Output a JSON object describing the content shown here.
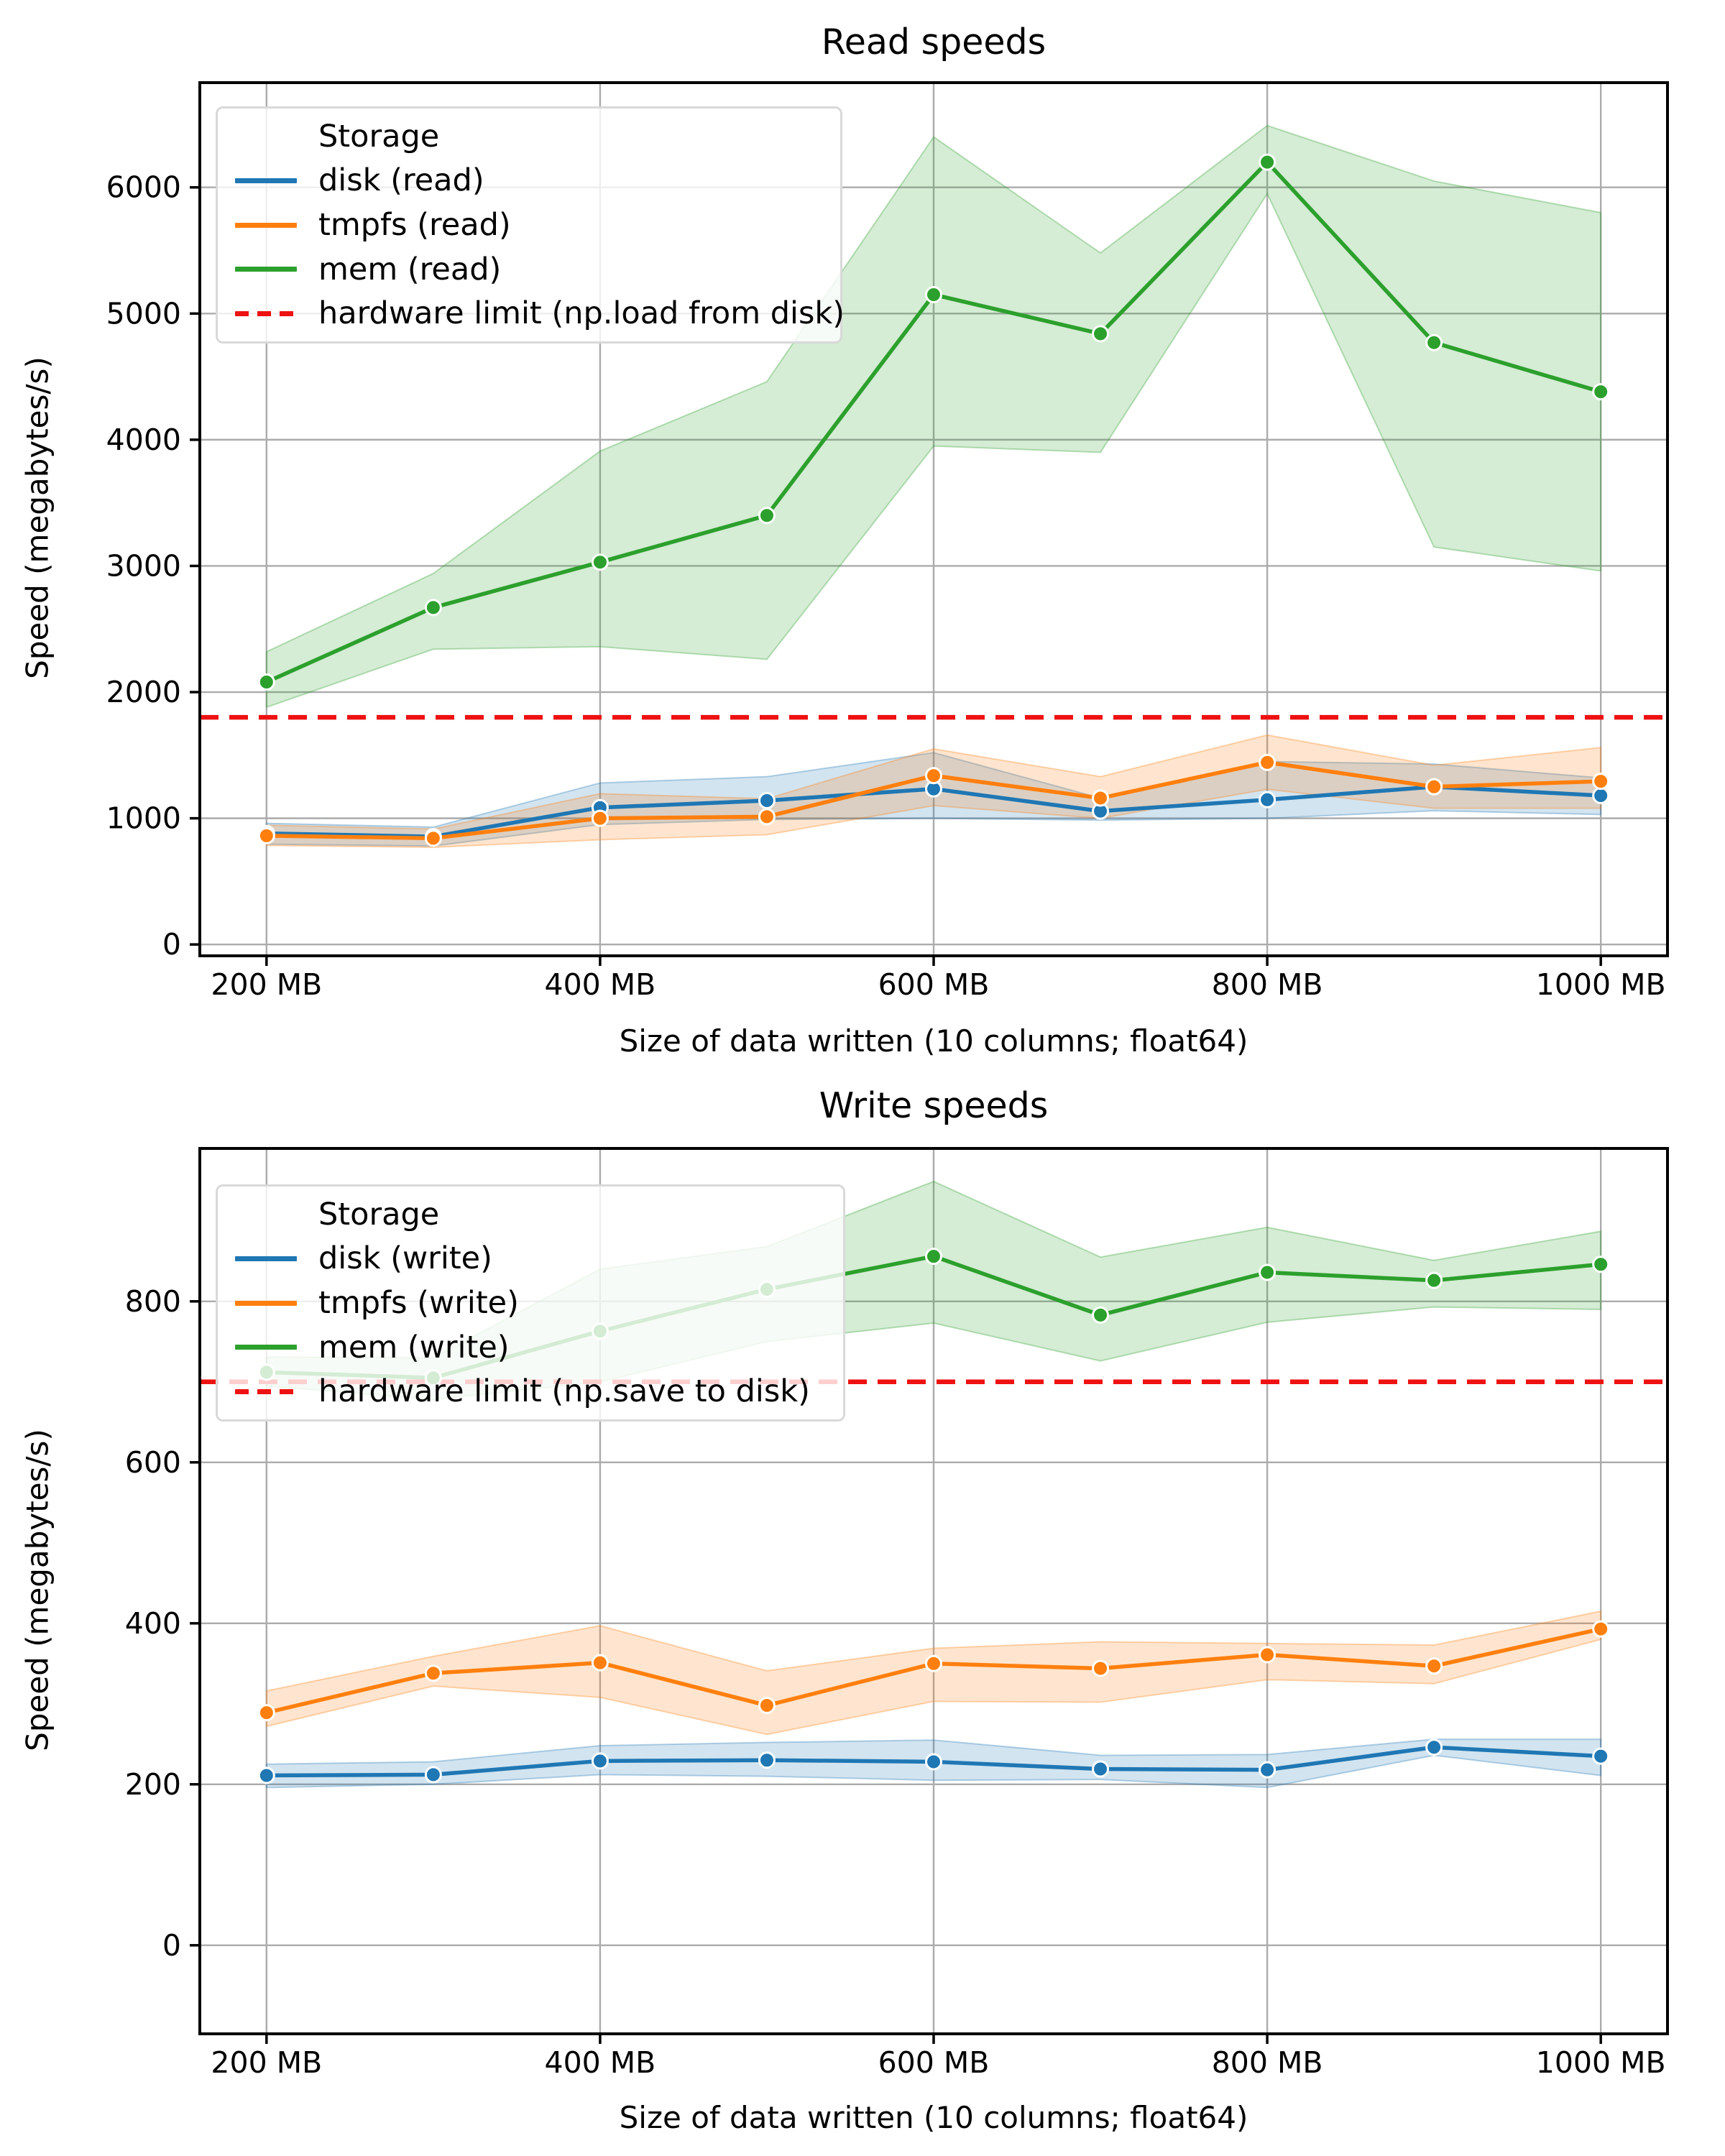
{
  "figure": {
    "background": "#ffffff"
  },
  "colors": {
    "disk": "#1f77b4",
    "tmpfs": "#ff7f0e",
    "mem": "#2ca02c",
    "limit": "#ee1111",
    "grid": "#ababab",
    "spine": "#000000",
    "band_alpha": 0.2
  },
  "chart_data": [
    {
      "type": "line",
      "title": "Read speeds",
      "xlabel": "Size of data written (10 columns; float64)",
      "ylabel": "Speed (megabytes/s)",
      "x": [
        200,
        300,
        400,
        500,
        600,
        700,
        800,
        900,
        1000
      ],
      "x_ticks": [
        200,
        400,
        600,
        800,
        1000
      ],
      "x_tick_labels": [
        "200 MB",
        "400 MB",
        "600 MB",
        "800 MB",
        "1000 MB"
      ],
      "y_ticks": [
        0,
        1000,
        2000,
        3000,
        4000,
        5000,
        6000
      ],
      "xlim": [
        160,
        1040
      ],
      "ylim": [
        -90,
        6830
      ],
      "grid": true,
      "legend": {
        "title": "Storage",
        "position": "upper left",
        "entries": [
          {
            "label": "disk (read)",
            "color_key": "disk",
            "dash": false
          },
          {
            "label": "tmpfs (read)",
            "color_key": "tmpfs",
            "dash": false
          },
          {
            "label": "mem (read)",
            "color_key": "mem",
            "dash": false
          },
          {
            "label": "hardware limit (np.load from disk)",
            "color_key": "limit",
            "dash": true
          }
        ]
      },
      "series": [
        {
          "name": "disk (read)",
          "color_key": "disk",
          "mean": [
            880,
            855,
            1085,
            1140,
            1233,
            1057,
            1147,
            1250,
            1180
          ],
          "band_low": [
            795,
            780,
            950,
            990,
            1000,
            985,
            1000,
            1060,
            1030
          ],
          "band_high": [
            960,
            930,
            1280,
            1330,
            1520,
            1160,
            1450,
            1430,
            1320
          ]
        },
        {
          "name": "tmpfs (read)",
          "color_key": "tmpfs",
          "mean": [
            862,
            842,
            1000,
            1013,
            1338,
            1160,
            1443,
            1250,
            1293
          ],
          "band_low": [
            785,
            770,
            830,
            870,
            1100,
            1000,
            1230,
            1080,
            1080
          ],
          "band_high": [
            945,
            915,
            1195,
            1155,
            1550,
            1330,
            1660,
            1420,
            1560
          ]
        },
        {
          "name": "mem (read)",
          "color_key": "mem",
          "mean": [
            2080,
            2670,
            3030,
            3400,
            5150,
            4840,
            6200,
            4770,
            4380
          ],
          "band_low": [
            1880,
            2340,
            2360,
            2260,
            3950,
            3900,
            5950,
            3150,
            2960
          ],
          "band_high": [
            2320,
            2940,
            3910,
            4460,
            6400,
            5480,
            6490,
            6050,
            5800
          ]
        }
      ],
      "hline": {
        "label": "hardware limit (np.load from disk)",
        "value": 1800,
        "style": "dashed",
        "color_key": "limit"
      }
    },
    {
      "type": "line",
      "title": "Write speeds",
      "xlabel": "Size of data written (10 columns; float64)",
      "ylabel": "Speed (megabytes/s)",
      "x": [
        200,
        300,
        400,
        500,
        600,
        700,
        800,
        900,
        1000
      ],
      "x_ticks": [
        200,
        400,
        600,
        800,
        1000
      ],
      "x_tick_labels": [
        "200 MB",
        "400 MB",
        "600 MB",
        "800 MB",
        "1000 MB"
      ],
      "y_ticks": [
        0,
        200,
        400,
        600,
        800
      ],
      "xlim": [
        160,
        1040
      ],
      "ylim": [
        -110,
        990
      ],
      "grid": true,
      "legend": {
        "title": "Storage",
        "position": "upper left",
        "entries": [
          {
            "label": "disk (write)",
            "color_key": "disk",
            "dash": false
          },
          {
            "label": "tmpfs (write)",
            "color_key": "tmpfs",
            "dash": false
          },
          {
            "label": "mem (write)",
            "color_key": "mem",
            "dash": false
          },
          {
            "label": "hardware limit (np.save to disk)",
            "color_key": "limit",
            "dash": true
          }
        ]
      },
      "series": [
        {
          "name": "disk (write)",
          "color_key": "disk",
          "mean": [
            211,
            212,
            229,
            230,
            228,
            219,
            218,
            246,
            235
          ],
          "band_low": [
            196,
            200,
            212,
            210,
            205,
            206,
            196,
            236,
            211
          ],
          "band_high": [
            225,
            228,
            248,
            252,
            255,
            236,
            237,
            256,
            256
          ]
        },
        {
          "name": "tmpfs (write)",
          "color_key": "tmpfs",
          "mean": [
            289,
            338,
            351,
            298,
            350,
            344,
            361,
            347,
            393
          ],
          "band_low": [
            272,
            322,
            308,
            262,
            303,
            302,
            330,
            325,
            380
          ],
          "band_high": [
            316,
            359,
            397,
            341,
            369,
            377,
            375,
            373,
            415
          ]
        },
        {
          "name": "mem (write)",
          "color_key": "mem",
          "mean": [
            712,
            705,
            763,
            815,
            856,
            783,
            836,
            826,
            846
          ],
          "band_low": [
            695,
            678,
            700,
            750,
            773,
            726,
            774,
            793,
            790
          ],
          "band_high": [
            731,
            730,
            840,
            868,
            949,
            855,
            892,
            851,
            887
          ]
        }
      ],
      "hline": {
        "label": "hardware limit (np.save to disk)",
        "value": 700,
        "style": "dashed",
        "color_key": "limit"
      }
    }
  ]
}
